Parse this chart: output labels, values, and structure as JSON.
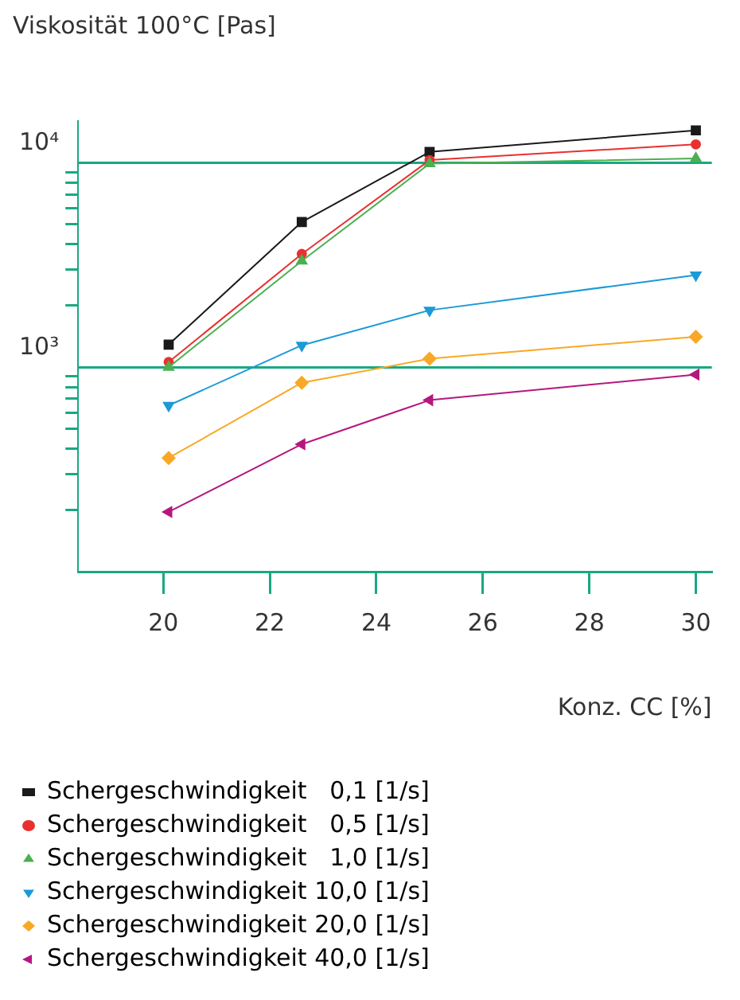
{
  "chart_data": {
    "type": "line",
    "title": "Viskosität 100°C [Pas]",
    "xlabel": "Konz. CC [%]",
    "x": [
      20.1,
      22.6,
      25,
      30
    ],
    "series": [
      {
        "name": "Schergeschwindigkeit   0,1 [1/s]",
        "color": "#1a1a1a",
        "marker": "square",
        "values": [
          1290,
          5130,
          11300,
          14400
        ]
      },
      {
        "name": "Schergeschwindigkeit   0,5 [1/s]",
        "color": "#e8312f",
        "marker": "circle",
        "values": [
          1060,
          3580,
          10300,
          12300
        ]
      },
      {
        "name": "Schergeschwindigkeit   1,0 [1/s]",
        "color": "#4caf50",
        "marker": "triangle",
        "values": [
          1000,
          3310,
          9900,
          10500
        ]
      },
      {
        "name": "Schergeschwindigkeit 10,0 [1/s]",
        "color": "#1a9ad6",
        "marker": "triangle-down",
        "values": [
          650,
          1280,
          1900,
          2820
        ]
      },
      {
        "name": "Schergeschwindigkeit 20,0 [1/s]",
        "color": "#f9a825",
        "marker": "diamond",
        "values": [
          360,
          840,
          1100,
          1410
        ]
      },
      {
        "name": "Schergeschwindigkeit 40,0 [1/s]",
        "color": "#b5177f",
        "marker": "triangle-left",
        "values": [
          196,
          420,
          690,
          920
        ]
      }
    ],
    "log": "y",
    "xlim": [
      18.4,
      30.3
    ],
    "xticks": [
      20,
      22,
      24,
      26,
      28,
      30
    ],
    "ylim": [
      100,
      16000
    ],
    "yticks": [
      {
        "value": 200,
        "label": null
      },
      {
        "value": 300,
        "label": null
      },
      {
        "value": 400,
        "label": null
      },
      {
        "value": 500,
        "label": null
      },
      {
        "value": 600,
        "label": null
      },
      {
        "value": 700,
        "label": null
      },
      {
        "value": 800,
        "label": null
      },
      {
        "value": 900,
        "label": null
      },
      {
        "value": 1000,
        "label": "10³"
      },
      {
        "value": 2000,
        "label": null
      },
      {
        "value": 3000,
        "label": null
      },
      {
        "value": 4000,
        "label": null
      },
      {
        "value": 5000,
        "label": null
      },
      {
        "value": 6000,
        "label": null
      },
      {
        "value": 7000,
        "label": null
      },
      {
        "value": 8000,
        "label": null
      },
      {
        "value": 9000,
        "label": null
      },
      {
        "value": 10000,
        "label": "10⁴"
      }
    ],
    "grid": "y",
    "legend": "bottom",
    "line_style": "solid"
  }
}
